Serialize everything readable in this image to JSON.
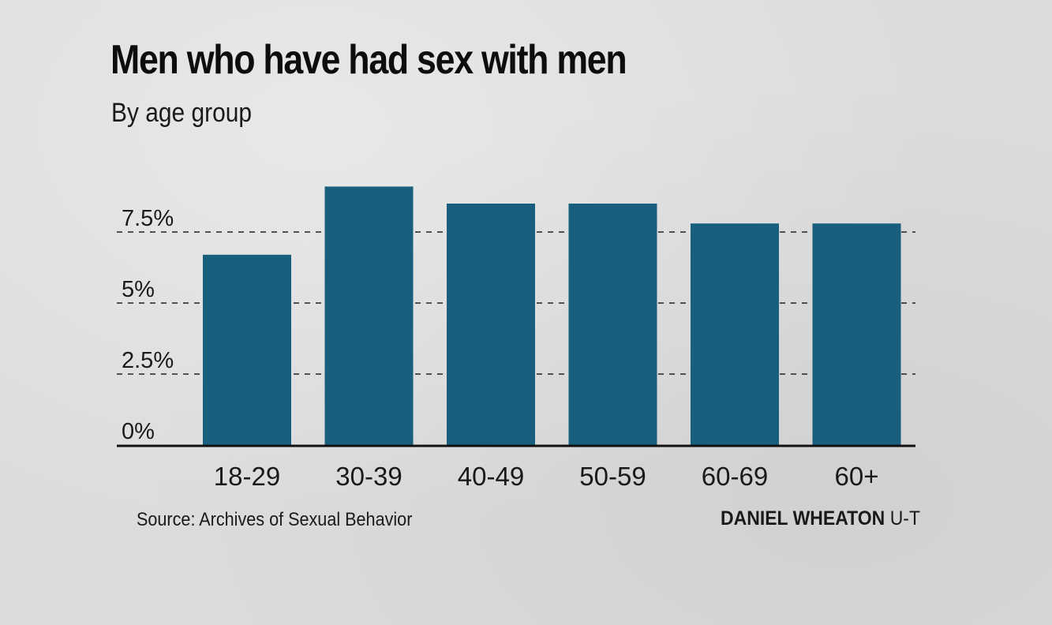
{
  "chart_data": {
    "type": "bar",
    "title": "Men who have had sex with men",
    "subtitle": "By age group",
    "categories": [
      "18-29",
      "30-39",
      "40-49",
      "50-59",
      "60-69",
      "60+"
    ],
    "values": [
      6.7,
      9.1,
      8.5,
      8.5,
      7.8,
      7.8
    ],
    "ylim": [
      0,
      10
    ],
    "yticks": [
      {
        "value": 0,
        "label": "0%"
      },
      {
        "value": 2.5,
        "label": "2.5%"
      },
      {
        "value": 5,
        "label": "5%"
      },
      {
        "value": 7.5,
        "label": "7.5%"
      }
    ],
    "grid": "dashed horizontal",
    "legend": "none",
    "bar_color": "#185f7d"
  },
  "footer": {
    "source": "Source: Archives of Sexual Behavior",
    "credit_name": "DANIEL WHEATON",
    "credit_org": "U-T"
  }
}
